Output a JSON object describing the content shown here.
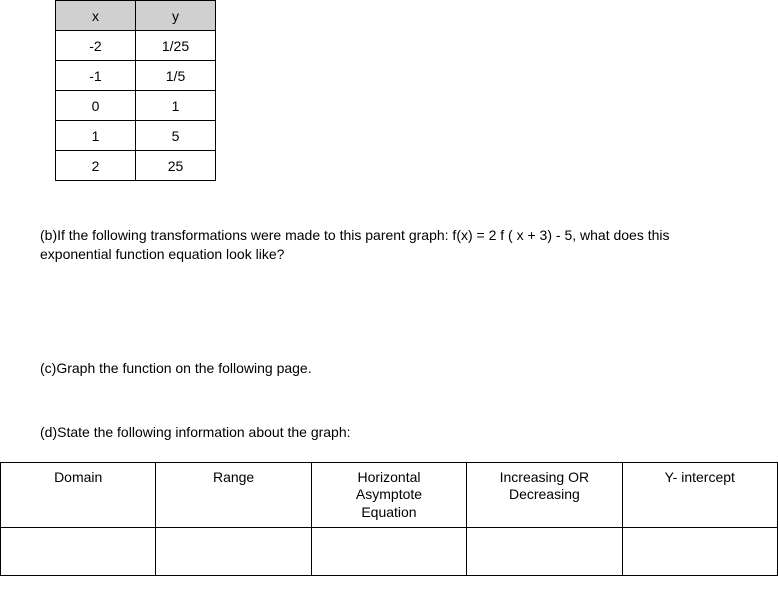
{
  "xyTable": {
    "headers": {
      "x": "x",
      "y": "y"
    },
    "rows": [
      {
        "x": "-2",
        "y": "1/25"
      },
      {
        "x": "-1",
        "y": "1/5"
      },
      {
        "x": "0",
        "y": "1"
      },
      {
        "x": "1",
        "y": "5"
      },
      {
        "x": "2",
        "y": "25"
      }
    ]
  },
  "questions": {
    "b": "(b)If the following transformations were made to this parent graph: f(x) = 2 f ( x + 3) - 5, what does this exponential function equation look like?",
    "c": "(c)Graph the function on the following page.",
    "d": "(d)State the following information about the graph:"
  },
  "infoTable": {
    "headers": {
      "domain": "Domain",
      "range": "Range",
      "ha": "Horizontal Asymptote Equation",
      "incdec": "Increasing OR Decreasing",
      "yint": "Y- intercept"
    }
  }
}
